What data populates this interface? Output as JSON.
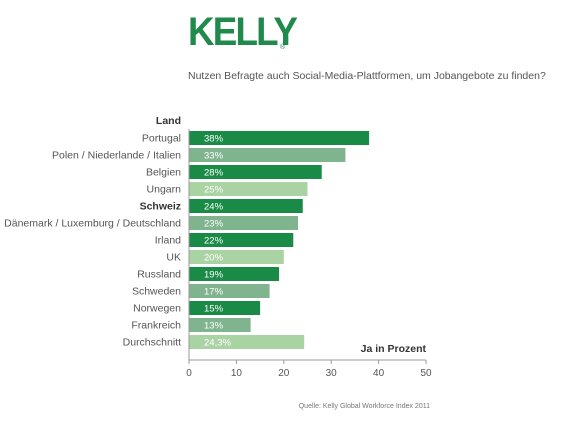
{
  "logo": {
    "text": "KELLY",
    "mark": "®"
  },
  "question": "Nutzen Befragte auch Social-Media-Plattformen, um Jobangebote zu finden?",
  "colors": {
    "dark_green": "#1a8a47",
    "mid_green": "#7fb48f",
    "light_green": "#a9d3a2"
  },
  "chart_data": {
    "type": "bar",
    "orientation": "horizontal",
    "category_header": "Land",
    "unit_label": "Ja in Prozent",
    "source": "Quelle: Kelly Global Workforce Index 2011",
    "xlim": [
      0,
      50
    ],
    "xticks": [
      0,
      10,
      20,
      30,
      40,
      50
    ],
    "grid": false,
    "categories": [
      "Portugal",
      "Polen / Niederlande / Italien",
      "Belgien",
      "Ungarn",
      "Schweiz",
      "Dänemark / Luxemburg / Deutschland",
      "Irland",
      "UK",
      "Russland",
      "Schweden",
      "Norwegen",
      "Frankreich",
      "Durchschnitt"
    ],
    "values": [
      38,
      33,
      28,
      25,
      24,
      23,
      22,
      20,
      19,
      17,
      15,
      13,
      24.3
    ],
    "value_labels": [
      "38%",
      "33%",
      "28%",
      "25%",
      "24%",
      "23%",
      "22%",
      "20%",
      "19%",
      "17%",
      "15%",
      "13%",
      "24,3%"
    ],
    "bar_colors": [
      "dark_green",
      "mid_green",
      "dark_green",
      "light_green",
      "dark_green",
      "mid_green",
      "dark_green",
      "light_green",
      "dark_green",
      "mid_green",
      "dark_green",
      "mid_green",
      "light_green"
    ],
    "bold_categories": [
      "Schweiz"
    ]
  }
}
